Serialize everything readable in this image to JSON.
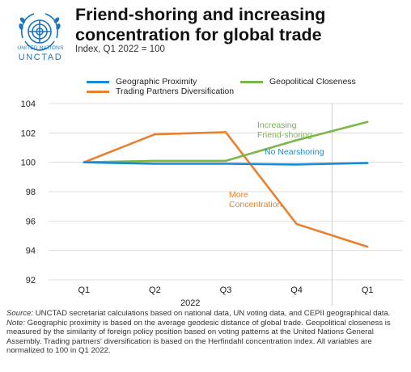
{
  "header": {
    "logo": {
      "icon": "un-emblem-icon",
      "org_line_1": "UNITED NATIONS",
      "org_line_2": "UNCTAD"
    },
    "title": "Friend-shoring and increasing concentration for global trade",
    "subtitle": "Index, Q1 2022 = 100"
  },
  "chart_data": {
    "type": "line",
    "categories": [
      "Q1",
      "Q2",
      "Q3",
      "Q4",
      "Q1"
    ],
    "category_group_label": "2022",
    "ylim": [
      92,
      104
    ],
    "yticks": [
      "92",
      "94",
      "96",
      "98",
      "100",
      "102",
      "104"
    ],
    "grid": "horizontal",
    "legend_position": "top",
    "series": [
      {
        "name": "Geographic Proximity",
        "color": "#1a8bcf",
        "values": [
          100,
          99.9,
          99.9,
          99.85,
          99.95
        ]
      },
      {
        "name": "Geopolitical Closeness",
        "color": "#7ab648",
        "values": [
          100,
          100.1,
          100.1,
          101.5,
          102.75
        ]
      },
      {
        "name": "Trading Partners Diversification",
        "color": "#e8812f",
        "values": [
          100,
          101.9,
          102.05,
          95.8,
          94.25
        ]
      }
    ],
    "annotations": [
      {
        "text_lines": [
          "Increasing",
          "Friend-shoring"
        ],
        "color": "#7ab648"
      },
      {
        "text_lines": [
          "No Nearshoring"
        ],
        "color": "#1a8bcf"
      },
      {
        "text_lines": [
          "More",
          "Concentration"
        ],
        "color": "#e8812f"
      }
    ]
  },
  "notes": {
    "source_label": "Source:",
    "source_text": " UNCTAD secretariat calculations based on national data, UN voting data, and CEPII geographical data.",
    "note_label": "Note:",
    "note_text": " Geographic proximity is based on the average geodesic distance of global trade. Geopolitical closeness is measured by the similarity of foreign policy position based on voting patterns at the United Nations General Assembly. Trading partners' diversification is based on the Herfindahl concentration index. All variables are normalized to 100 in Q1 2022."
  }
}
